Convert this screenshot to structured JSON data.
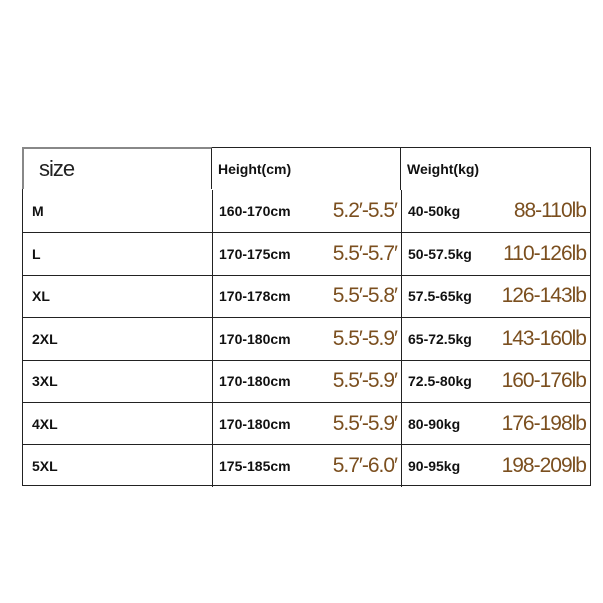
{
  "headers": {
    "size": "size",
    "height": "Height(cm)",
    "weight": "Weight(kg)"
  },
  "accent_color": "#7b4f1f",
  "rows": [
    {
      "size": "M",
      "cm": "160-170cm",
      "ft": "5.2′-5.5′",
      "kg": "40-50kg",
      "lb": "88-110lb"
    },
    {
      "size": "L",
      "cm": "170-175cm",
      "ft": "5.5′-5.7′",
      "kg": "50-57.5kg",
      "lb": "110-126lb"
    },
    {
      "size": "XL",
      "cm": "170-178cm",
      "ft": "5.5′-5.8′",
      "kg": "57.5-65kg",
      "lb": "126-143lb"
    },
    {
      "size": "2XL",
      "cm": "170-180cm",
      "ft": "5.5′-5.9′",
      "kg": "65-72.5kg",
      "lb": "143-160lb"
    },
    {
      "size": "3XL",
      "cm": "170-180cm",
      "ft": "5.5′-5.9′",
      "kg": "72.5-80kg",
      "lb": "160-176lb"
    },
    {
      "size": "4XL",
      "cm": "170-180cm",
      "ft": "5.5′-5.9′",
      "kg": "80-90kg",
      "lb": "176-198lb"
    },
    {
      "size": "5XL",
      "cm": "175-185cm",
      "ft": "5.7′-6.0′",
      "kg": "90-95kg",
      "lb": "198-209lb"
    }
  ]
}
